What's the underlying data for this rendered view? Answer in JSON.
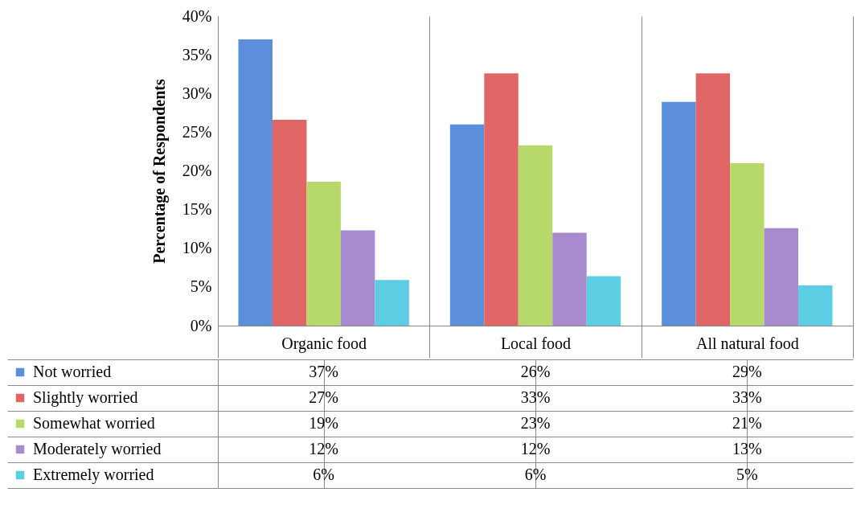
{
  "chart_data": {
    "type": "bar",
    "ylabel": "Percentage of Respondents",
    "categories": [
      "Organic food",
      "Local food",
      "All natural food"
    ],
    "series": [
      {
        "name": "Not worried",
        "color": "#5b8fdb",
        "values": [
          37,
          26,
          28.9
        ],
        "value_labels": [
          "37%",
          "26%",
          "29%"
        ]
      },
      {
        "name": "Slightly worried",
        "color": "#e06666",
        "values": [
          26.6,
          32.6,
          32.6
        ],
        "value_labels": [
          "27%",
          "33%",
          "33%"
        ]
      },
      {
        "name": "Somewhat worried",
        "color": "#b7d96c",
        "values": [
          18.6,
          23.3,
          21
        ],
        "value_labels": [
          "19%",
          "23%",
          "21%"
        ]
      },
      {
        "name": "Moderately worried",
        "color": "#a88bcf",
        "values": [
          12.3,
          12,
          12.6
        ],
        "value_labels": [
          "12%",
          "12%",
          "13%"
        ]
      },
      {
        "name": "Extremely worried",
        "color": "#5ccde2",
        "values": [
          5.9,
          6.4,
          5.2
        ],
        "value_labels": [
          "6%",
          "6%",
          "5%"
        ]
      }
    ],
    "ylim": [
      0,
      40
    ],
    "yticks": [
      {
        "value": 0,
        "label": "0%"
      },
      {
        "value": 5,
        "label": "5%"
      },
      {
        "value": 10,
        "label": "10%"
      },
      {
        "value": 15,
        "label": "15%"
      },
      {
        "value": 20,
        "label": "20%"
      },
      {
        "value": 25,
        "label": "25%"
      },
      {
        "value": 30,
        "label": "30%"
      },
      {
        "value": 35,
        "label": "35%"
      },
      {
        "value": 40,
        "label": "40%"
      }
    ],
    "grid": false,
    "legend": "bottom left"
  }
}
